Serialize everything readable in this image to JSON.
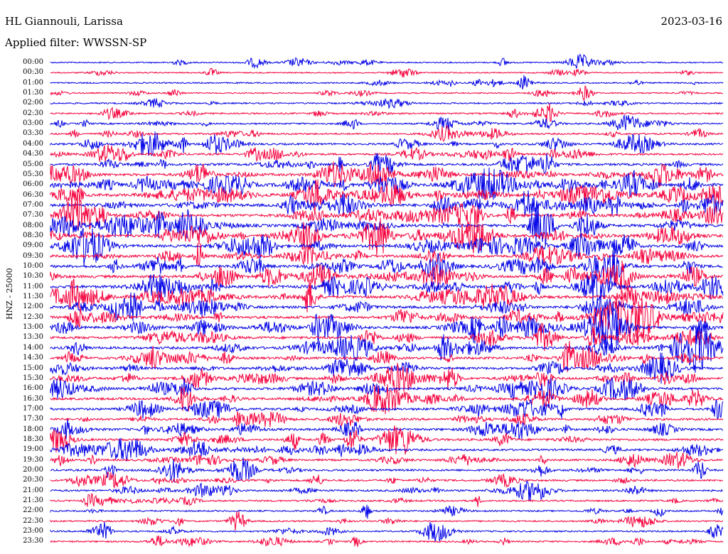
{
  "header": {
    "station": "HL Giannouli, Larissa",
    "date": "2023-03-16",
    "filter_label": "Applied filter: WWSSN-SP"
  },
  "chart_data": {
    "type": "line",
    "title": "HL Giannouli, Larissa",
    "ylabel": "HNZ - 25000",
    "series_colors": [
      "#0000e6",
      "#f5003c"
    ],
    "categories": [
      "00:00",
      "00:30",
      "01:00",
      "01:30",
      "02:00",
      "02:30",
      "03:00",
      "03:30",
      "04:00",
      "04:30",
      "05:00",
      "05:30",
      "06:00",
      "06:30",
      "07:00",
      "07:30",
      "08:00",
      "08:30",
      "09:00",
      "09:30",
      "10:00",
      "10:30",
      "11:00",
      "11:30",
      "12:00",
      "12:30",
      "13:00",
      "13:30",
      "14:00",
      "14:30",
      "15:00",
      "15:30",
      "16:00",
      "16:30",
      "17:00",
      "17:30",
      "18:00",
      "18:30",
      "19:00",
      "19:30",
      "20:00",
      "20:30",
      "21:00",
      "21:30",
      "22:00",
      "22:30",
      "23:00",
      "23:30"
    ],
    "activity": [
      0.2,
      0.15,
      0.2,
      0.15,
      0.3,
      0.3,
      0.35,
      0.4,
      0.5,
      0.5,
      0.65,
      0.75,
      0.95,
      0.9,
      0.95,
      0.85,
      0.9,
      0.85,
      0.85,
      0.8,
      0.85,
      0.85,
      0.9,
      0.85,
      0.85,
      0.85,
      0.8,
      0.75,
      0.75,
      0.65,
      0.7,
      0.7,
      0.75,
      0.7,
      0.7,
      0.6,
      0.65,
      0.6,
      0.55,
      0.5,
      0.5,
      0.45,
      0.45,
      0.35,
      0.3,
      0.3,
      0.3,
      0.35
    ],
    "grid": false
  }
}
